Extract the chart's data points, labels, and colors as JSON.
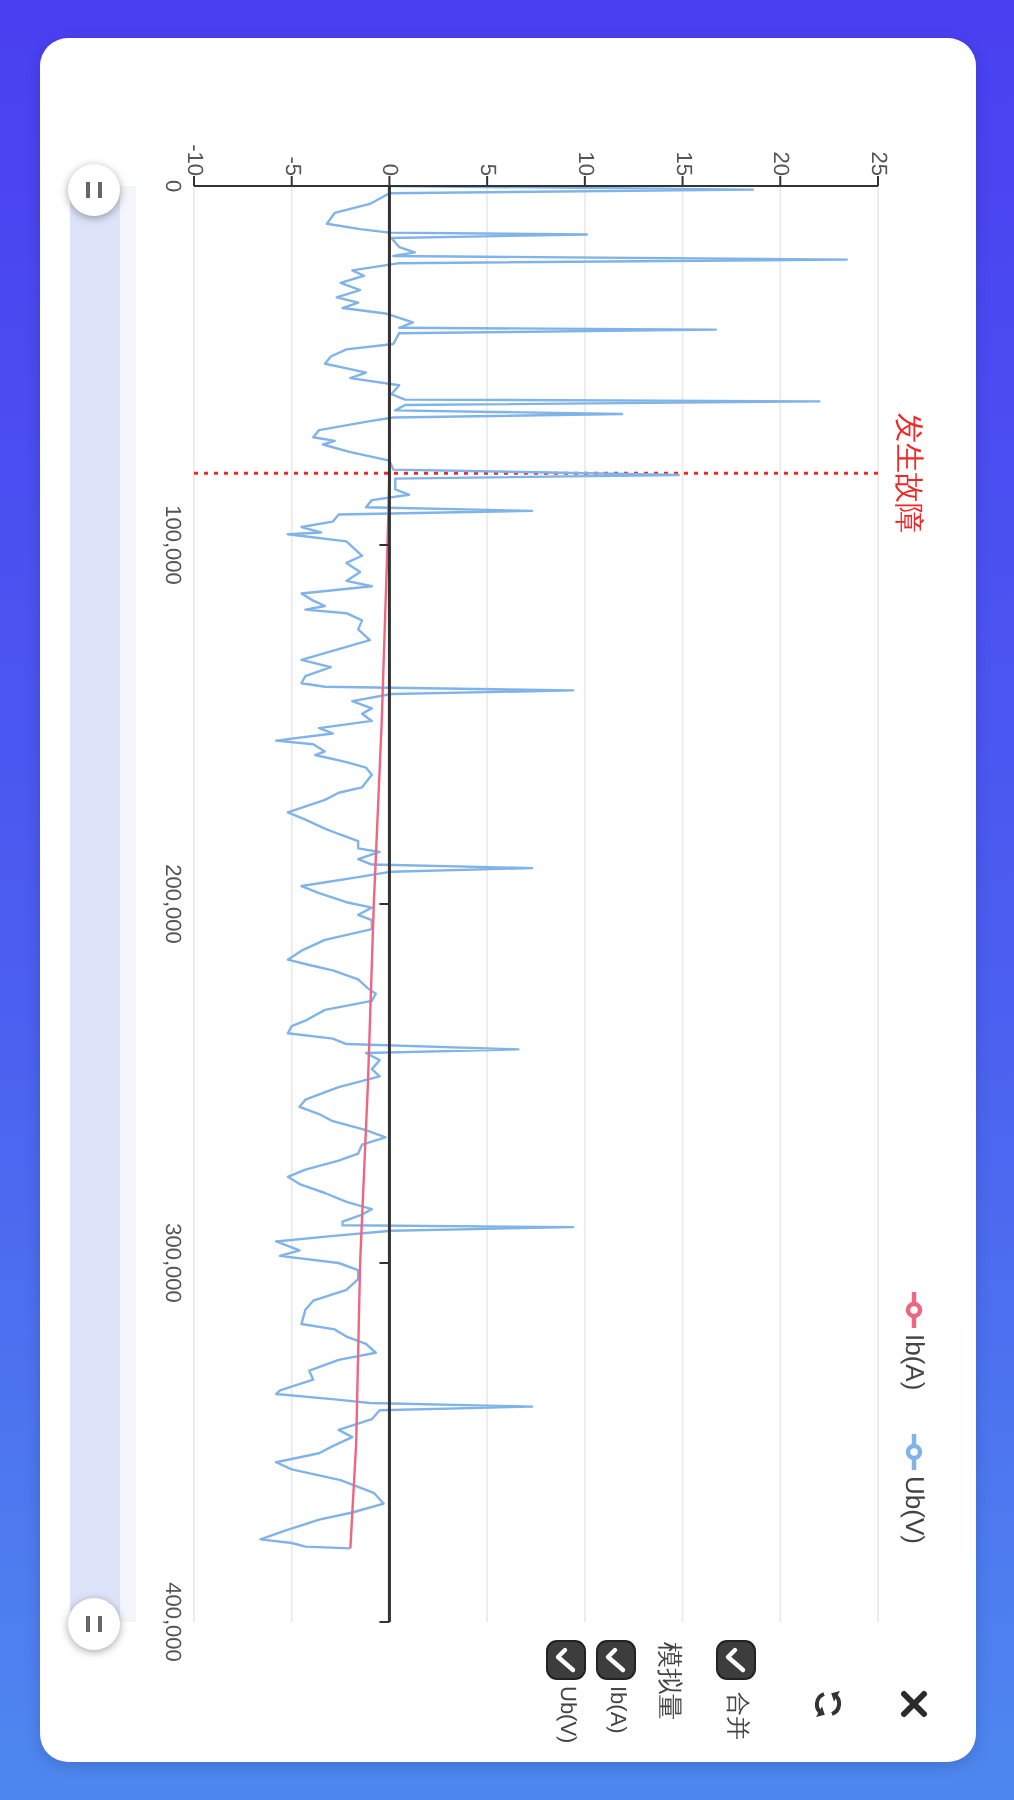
{
  "chart_data": {
    "type": "line",
    "xlim": [
      -10,
      25
    ],
    "xticks": [
      -10,
      -5,
      0,
      5,
      10,
      15,
      20,
      25
    ],
    "ylim": [
      400000,
      0
    ],
    "yticks": [
      0,
      {
        "value": 100000,
        "label": "100,000"
      },
      {
        "value": 200000,
        "label": "200,000"
      },
      {
        "value": 300000,
        "label": "300,000"
      },
      {
        "value": 400000,
        "label": "400,000"
      }
    ],
    "grid": "x",
    "legend": "bottom right",
    "ref_lines": [
      {
        "axis": "y",
        "value": 80000,
        "label": "发生故障",
        "color": "#f02828",
        "line_style": "dotted"
      }
    ],
    "annotations": [
      "合并",
      "模拟量"
    ],
    "series": [
      {
        "name": "Ib(A)",
        "color": "#ee6680",
        "x": [
          0,
          0,
          -0.1,
          -0.4,
          -0.8,
          -1.1,
          -1.5,
          -1.7,
          -2.0
        ],
        "values": [
          0,
          80000,
          100000,
          150000,
          200000,
          250000,
          300000,
          350000,
          379500
        ]
      },
      {
        "name": "Ub(V)",
        "color": "#80b4e8",
        "x": [
          0,
          18.6,
          0,
          -1.0,
          -2.8,
          -3.2,
          -1.5,
          0,
          10.1,
          0.1,
          0.5,
          1.3,
          0.2,
          23.4,
          0.5,
          -1.9,
          -1.3,
          -2.5,
          -1.5,
          -2.7,
          -1.6,
          -2.4,
          -0.2,
          1.2,
          0.5,
          16.7,
          0.5,
          0.2,
          -2.2,
          -3.0,
          -3.3,
          -2.0,
          -1.2,
          -2.0,
          0.5,
          0.1,
          0.8,
          22.0,
          0.8,
          0.3,
          11.9,
          0.2,
          -1.0,
          -3.6,
          -3.9,
          -2.8,
          -3.4,
          -2.1,
          0,
          0.2,
          14.8,
          0.3,
          0.3,
          1.0,
          -0.9,
          -1.2,
          7.3,
          -2.6,
          -2.9,
          -4.5,
          -3.5,
          -5.2,
          -2.2,
          -1.7,
          -1.4,
          -2.2,
          -1.5,
          -2.2,
          -0.9,
          -4.5,
          -3.9,
          -3.3,
          -4.3,
          -2.2,
          -1.4,
          -1.6,
          -1.0,
          -2.6,
          -4.5,
          -3.0,
          -4.3,
          -4.5,
          -3.3,
          9.4,
          0.1,
          -1.9,
          -0.9,
          -1.4,
          -0.9,
          -3.6,
          -2.9,
          -5.8,
          -3.9,
          -3.3,
          -3.8,
          -2.2,
          -1.2,
          -0.9,
          -1.4,
          -2.6,
          -3.3,
          -5.2,
          -4.3,
          -3.3,
          -2.6,
          -1.6,
          -1.6,
          -0.5,
          -1.6,
          -0.9,
          7.3,
          0.1,
          -1.6,
          -4.5,
          -3.6,
          -2.2,
          -0.9,
          -1.6,
          -0.9,
          -0.9,
          -3.3,
          -4.5,
          -5.2,
          -4.1,
          -2.9,
          -1.6,
          -1.1,
          -0.7,
          -0.9,
          -3.3,
          -4.3,
          -5.0,
          -5.2,
          -2.9,
          -2.2,
          6.6,
          -1.2,
          -0.5,
          -0.9,
          -0.5,
          -2.6,
          -4.3,
          -4.6,
          -3.6,
          -2.9,
          -1.2,
          -0.2,
          -1.4,
          -1.6,
          -2.6,
          -4.3,
          -5.2,
          -4.6,
          -3.3,
          -2.2,
          -0.9,
          -1.4,
          -2.4,
          -2.4,
          9.4,
          0.1,
          -3.0,
          -5.8,
          -4.6,
          -5.6,
          -2.6,
          -1.6,
          -1.6,
          -2.2,
          -3.9,
          -4.3,
          -4.5,
          -2.8,
          -2.2,
          -1.2,
          -0.7,
          -2.6,
          -4.1,
          -3.9,
          -5.6,
          -5.8,
          -2.8,
          -1.0,
          7.3,
          -0.5,
          -0.9,
          -2.6,
          -1.9,
          -2.9,
          -3.6,
          -5.8,
          -5.0,
          -2.5,
          -0.8,
          -0.3,
          -1.9,
          -3.6,
          -5.3,
          -6.6,
          -5.0,
          -4.3,
          -2.0
        ],
        "values": [
          0,
          1000,
          2000,
          5000,
          7500,
          10500,
          12000,
          13000,
          13500,
          14500,
          17000,
          18500,
          19500,
          20500,
          21500,
          23500,
          25000,
          27000,
          29000,
          31000,
          32500,
          34000,
          35500,
          38000,
          39500,
          40000,
          41000,
          44000,
          45500,
          47500,
          49500,
          51000,
          52000,
          53500,
          55500,
          58000,
          59500,
          60000,
          61000,
          62500,
          63500,
          64500,
          65500,
          68000,
          70000,
          71000,
          72000,
          74000,
          76500,
          79000,
          80500,
          81500,
          84500,
          86000,
          87500,
          89500,
          90500,
          91500,
          93500,
          95000,
          96500,
          97000,
          99000,
          101500,
          103000,
          105000,
          107500,
          110000,
          111500,
          113500,
          115500,
          117000,
          118000,
          119000,
          121000,
          123500,
          126500,
          129000,
          132000,
          134000,
          136500,
          138500,
          139500,
          140500,
          141500,
          143500,
          145500,
          147000,
          149000,
          151000,
          152500,
          154500,
          155500,
          157500,
          158500,
          160500,
          162000,
          164000,
          167500,
          169000,
          171000,
          174500,
          176500,
          179000,
          180500,
          182500,
          184500,
          185500,
          187500,
          189000,
          190000,
          191000,
          192500,
          195000,
          197000,
          199500,
          201000,
          203000,
          204500,
          207000,
          210000,
          213000,
          215500,
          217000,
          218500,
          221000,
          223500,
          225000,
          227000,
          229500,
          232500,
          234000,
          236000,
          237500,
          239000,
          240500,
          241500,
          243500,
          246000,
          248000,
          251000,
          254500,
          256500,
          258500,
          260500,
          263000,
          265000,
          267000,
          269500,
          271500,
          274000,
          276000,
          278000,
          280500,
          283000,
          285000,
          286500,
          288500,
          289500,
          290000,
          291000,
          292500,
          294000,
          296500,
          298000,
          300000,
          302000,
          304500,
          307500,
          310500,
          313000,
          317000,
          318500,
          320500,
          322500,
          325000,
          327000,
          330000,
          332500,
          335500,
          336500,
          338000,
          339000,
          340000,
          341000,
          343500,
          346500,
          348500,
          351000,
          353000,
          355500,
          357500,
          360500,
          364000,
          367000,
          369500,
          371500,
          374500,
          377000,
          378000,
          379000,
          379500
        ]
      }
    ]
  }
}
